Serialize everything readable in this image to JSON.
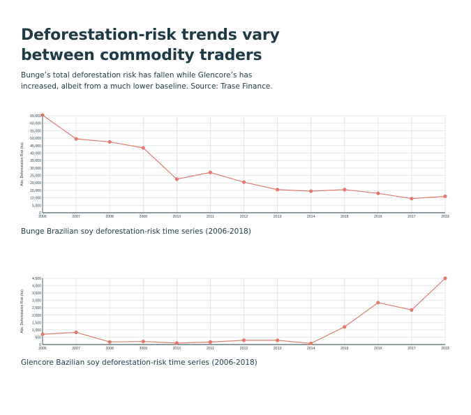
{
  "page": {
    "title": "Deforestation-risk trends vary between commodity traders",
    "subtitle": "Bunge’s total deforestation risk has fallen while Glencore’s has increased, albeit from a much lower baseline. Source: Trase Finance."
  },
  "colors": {
    "text": "#1d3a45",
    "series": "#e07a6e",
    "axis": "#1d3a45",
    "grid": "#dddddd"
  },
  "chart_data": [
    {
      "type": "line",
      "caption": "Bunge Brazilian soy deforestation-risk time series (2006-2018)",
      "ylabel": "Abs. Deforestation Risk (ha)",
      "xlabel": "",
      "x": [
        "2006",
        "2007",
        "2008",
        "2009",
        "2010",
        "2011",
        "2012",
        "2013",
        "2014",
        "2015",
        "2016",
        "2017",
        "2018"
      ],
      "series": [
        {
          "values": [
            65500,
            49500,
            47500,
            43500,
            22500,
            27000,
            20500,
            15500,
            14500,
            15500,
            13000,
            9500,
            11000
          ]
        }
      ],
      "ylim": [
        0,
        65000
      ],
      "yticks": [
        0,
        5000,
        10000,
        15000,
        20000,
        25000,
        30000,
        35000,
        40000,
        45000,
        50000,
        55000,
        60000,
        65000
      ],
      "ytick_labels": [
        "0",
        "5,000",
        "10,000",
        "15,000",
        "20,000",
        "25,000",
        "30,000",
        "35,000",
        "40,000",
        "45,000",
        "50,000",
        "55,000",
        "60,000",
        "65,000"
      ],
      "grid": true
    },
    {
      "type": "line",
      "caption": "Glencore Bazilian soy deforestation-risk time series (2006-2018)",
      "ylabel": "Abs. Deforestation Risk (ha)",
      "xlabel": "",
      "x": [
        "2006",
        "2007",
        "2008",
        "2009",
        "2010",
        "2011",
        "2012",
        "2013",
        "2014",
        "2015",
        "2016",
        "2017",
        "2018"
      ],
      "series": [
        {
          "values": [
            700,
            830,
            180,
            210,
            100,
            170,
            290,
            290,
            80,
            1200,
            2850,
            2350,
            4500
          ]
        }
      ],
      "ylim": [
        0,
        4500
      ],
      "yticks": [
        0,
        500,
        1000,
        1500,
        2000,
        2500,
        3000,
        3500,
        4000,
        4500
      ],
      "ytick_labels": [
        "0",
        "500",
        "1,000",
        "1,500",
        "2,000",
        "2,500",
        "3,000",
        "3,500",
        "4,000",
        "4,500"
      ],
      "grid": true
    }
  ]
}
